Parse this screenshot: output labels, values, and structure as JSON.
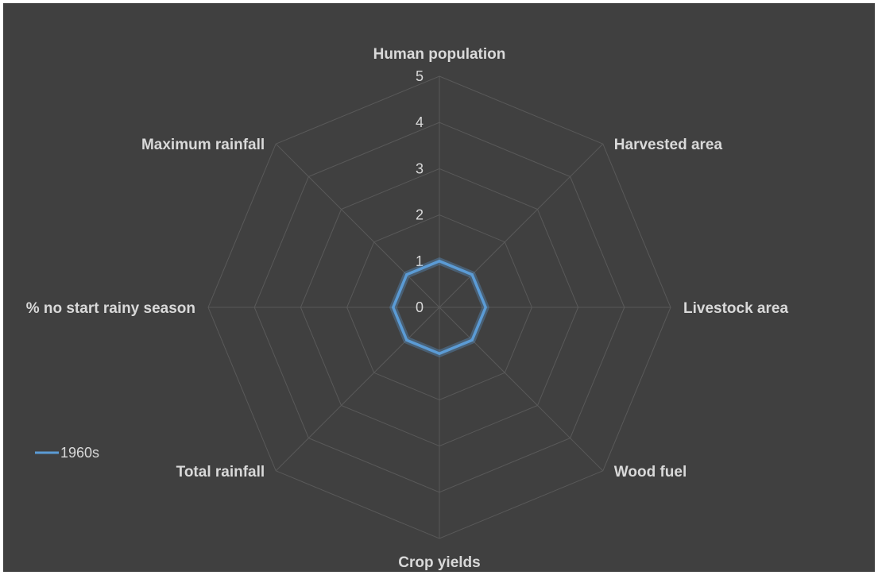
{
  "chart_data": {
    "type": "radar",
    "categories": [
      "Human population",
      "Harvested area",
      "Livestock area",
      "Wood fuel",
      "Crop yields",
      "Total rainfall",
      "% no start rainy season",
      "Maximum rainfall"
    ],
    "series": [
      {
        "name": "1960s",
        "values": [
          1,
          1,
          1,
          1,
          1,
          1,
          1,
          1
        ],
        "color": "#5b9bd5"
      }
    ],
    "rlim": [
      0,
      5
    ],
    "ticks": [
      0,
      1,
      2,
      3,
      4,
      5
    ],
    "grid": true,
    "legend_position": "left",
    "colors": {
      "background": "#404040",
      "grid": "#595959",
      "text": "#d9d9d9"
    }
  }
}
